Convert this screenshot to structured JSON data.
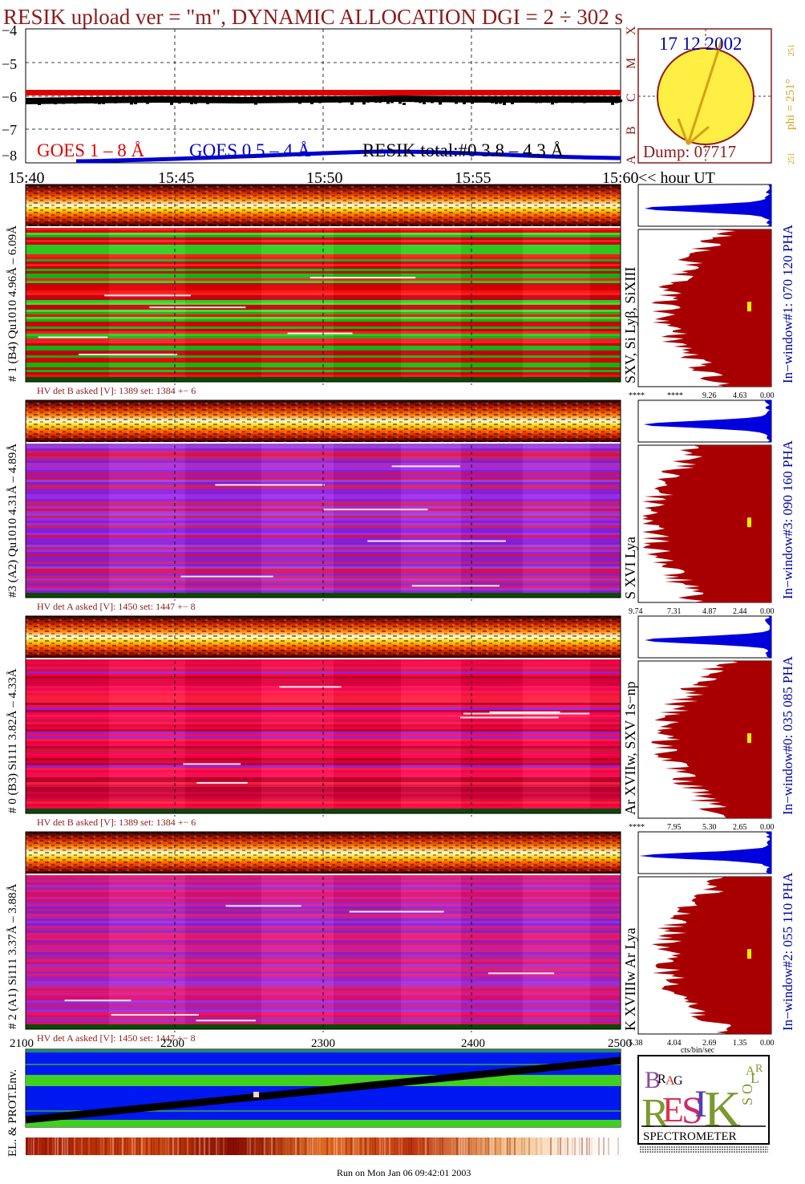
{
  "title": "RESIK upload ver = \"m\", DYNAMIC ALLOCATION  DGI =   2 ÷ 302 s",
  "colors": {
    "title": "#8b1a1a",
    "goes1": "#e00000",
    "goes05": "#0000cc",
    "resik": "#000000",
    "sun_fill": "#ffee44",
    "dark_red": "#a80000",
    "blue_hist": "#0000dd",
    "yellow_marker": "#ffee00"
  },
  "goes_panel": {
    "y_ticks": [
      "−4",
      "−5",
      "−6",
      "−7",
      "−8"
    ],
    "flare_classes": [
      "X",
      "M",
      "C",
      "B",
      "A"
    ],
    "legend": {
      "goes1": "GOES 1 – 8 Å",
      "goes05": "GOES 0.5 – 4 Å",
      "resik": "RESIK total:#0  3.8 – 4.3 Å"
    },
    "x_ticks": [
      "15:40",
      "15:45",
      "15:50",
      "15:55",
      "15:60"
    ],
    "x_suffix": "<< hour UT"
  },
  "sun_panel": {
    "date": "17 12 2002",
    "phi_label": "phi = 251°",
    "phi_sub": "251",
    "phi_bottom": "251",
    "dump": "Dump: 07717"
  },
  "detectors": [
    {
      "id": "d1",
      "side_label": "# 1 (B4) Qu1010 4.96Å – 6.09Å",
      "hv": "HV det B asked [V]:  1389 set:  1384  +−    6",
      "lines_label": "SXV, Si Lyβ, SiXIII",
      "window_label": "In−window#1:  070 120 PHA",
      "hist_ticks": [
        "****",
        "****",
        "9.26",
        "4.63",
        "0.00"
      ],
      "main_color": "green_red"
    },
    {
      "id": "d3",
      "side_label": "#3 (A2) Qu1010  4.31Å – 4.89Å",
      "hv": "HV det A asked [V]:  1450 set:  1447  +−    8",
      "lines_label": "S XVI Lya",
      "window_label": "In−window#3:  090 160 PHA",
      "hist_ticks": [
        "9.74",
        "7.31",
        "4.87",
        "2.44",
        "0.00"
      ],
      "main_color": "purple"
    },
    {
      "id": "d0",
      "side_label": "# 0 (B3) Si111  3.82Å – 4.33Å",
      "hv": "HV det B asked [V]:  1389 set:  1384  +−    6",
      "lines_label": "Ar XVIIw,  SXV 1s−np",
      "window_label": "In−window#0:  035 085 PHA",
      "hist_ticks": [
        "****",
        "7.95",
        "5.30",
        "2.65",
        "0.00"
      ],
      "main_color": "red"
    },
    {
      "id": "d2",
      "side_label": "# 2 (A1) Si111  3.37Å – 3.88Å",
      "hv": "HV det A asked [V]:  1450 set:  1447  +−    8",
      "lines_label": "K XVIIIw  Ar Lya",
      "window_label": "In−window#2:  055 110 PHA",
      "hist_ticks": [
        "5.38",
        "4.04",
        "2.69",
        "1.35",
        "0.00"
      ],
      "main_color": "magenta"
    }
  ],
  "hist_unit": "cts/bin/sec",
  "env_panel": {
    "x_ticks": [
      "2100",
      "2200",
      "2300",
      "2400",
      "2500"
    ],
    "side_label": "EL. & PROT.Env."
  },
  "logo": {
    "letters": [
      "B",
      "R",
      "A",
      "G",
      "R",
      "E",
      "S",
      "I",
      "K",
      "S",
      "O",
      "L",
      "A",
      "R"
    ],
    "caption": "SPECTROMETER"
  },
  "footer": "Run on Mon Jan 06 09:42:01 2003"
}
